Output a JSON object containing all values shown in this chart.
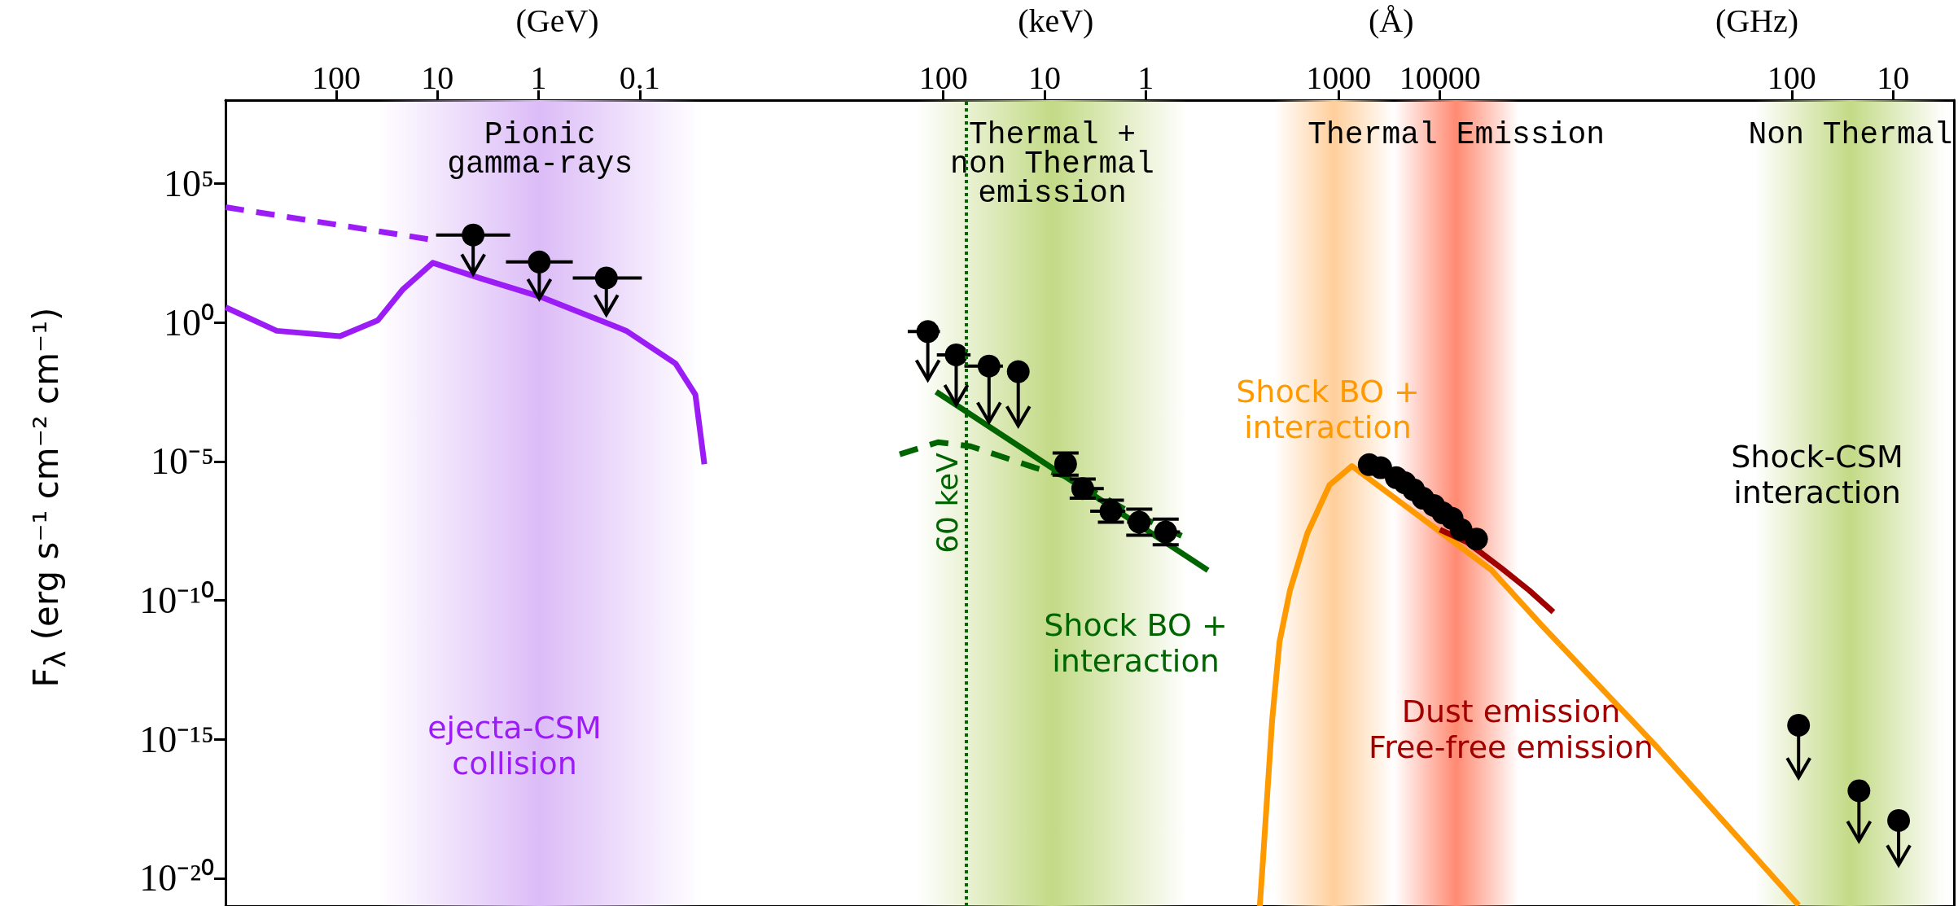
{
  "chart_data": [
    {
      "type": "line",
      "xlabel": "(GeV)",
      "ylabel": "F$_{λ}$ (erg s⁻¹ cm⁻² cm⁻¹)",
      "log": "xy",
      "xlim": [
        1240,
        0.000344
      ],
      "xticks": [
        100,
        10,
        1,
        0.1
      ],
      "ylim": [
        1e-21,
        100000000.0
      ],
      "yticks": [
        {
          "value": 1e-20,
          "label": "10⁻²⁰"
        },
        {
          "value": 1e-15,
          "label": "10⁻¹⁵"
        },
        {
          "value": 1e-10,
          "label": "10⁻¹⁰"
        },
        {
          "value": 1e-05,
          "label": "10⁻⁵"
        },
        {
          "value": 1,
          "label": "10⁰"
        },
        {
          "value": 100000.0,
          "label": "10⁵"
        }
      ],
      "bands": [
        {
          "axis": "x",
          "from": 38.7,
          "to": 0.0243,
          "label": "Pionic\ngamma-rays",
          "color": "#dcbcf7"
        }
      ],
      "series": [
        {
          "color": "#9b1cf5",
          "line_style": "dashed",
          "x": [
            1240,
            12.4
          ],
          "values": [
            14000.0,
            1000.0
          ]
        },
        {
          "name": "ejecta-CSM\ncollision",
          "color": "#9b1cf5",
          "line_style": "solid",
          "x": [
            1240,
            387,
            91.8,
            38.7,
            22.1,
            11.1,
            3.87,
            0.984,
            0.136,
            0.0443,
            0.0282,
            0.023
          ],
          "values": [
            3.5,
            0.5,
            0.32,
            1.2,
            15,
            140,
            40,
            8.7,
            0.5,
            0.033,
            0.0025,
            7.9e-06
          ]
        },
        {
          "type": "scatter",
          "color": "#000000",
          "marker": "circle",
          "x": [
            4.43,
            0.984,
            0.214
          ],
          "values": [
            1400,
            150,
            40
          ],
          "errors": [
            [
              56,
              1400
            ],
            [
              7.1,
              150
            ],
            [
              1.9,
              40
            ]
          ],
          "xerrors": [
            [
              1.91,
              10.3
            ],
            [
              0.459,
              2.1
            ],
            [
              0.0954,
              0.459
            ]
          ]
        }
      ]
    },
    {
      "type": "line",
      "xlabel": "(keV)",
      "log": "xy",
      "tick_labels": "x",
      "xlim": [
        344,
        0.1746
      ],
      "xticks": [
        100,
        10,
        1
      ],
      "ylim": [
        1e-21,
        100000000.0
      ],
      "bands": [
        {
          "axis": "x",
          "from": 182,
          "to": 0.387,
          "label": "Thermal +\nnon Thermal\nemission",
          "color": "#c3da86"
        }
      ],
      "ref_lines": [
        {
          "axis": "x",
          "value": 60,
          "label": "60 keV",
          "color": "#006400",
          "line_style": "dotted"
        }
      ],
      "series": [
        {
          "color": "#006400",
          "line_style": "dashed",
          "x": [
            270,
            113,
            53.9,
            12.4,
            5.9,
            1.53,
            0.443
          ],
          "values": [
            1.8e-05,
            4.9e-05,
            3.5e-05,
            5.9e-06,
            2.8e-06,
            1.7e-07,
            2.1e-08
          ]
        },
        {
          "name": "Shock BO +\ninteraction",
          "color": "#006400",
          "line_style": "solid",
          "x": [
            118,
            0.243
          ],
          "values": [
            0.0032,
            1.2e-09
          ]
        },
        {
          "type": "scatter",
          "color": "#000000",
          "marker": "circle",
          "x": [
            142.5,
            74.7,
            35.4,
            18.2
          ],
          "values": [
            0.47,
            0.068,
            0.027,
            0.017
          ],
          "errors": [
            [
              0.0087,
              0.47
            ],
            [
              0.0011,
              0.068
            ],
            [
              0.00026,
              0.027
            ],
            [
              0.00019,
              0.017
            ]
          ],
          "xerrors": [
            [
              108,
              225
            ],
            [
              53.9,
              116
            ],
            [
              25.8,
              62
            ],
            null
          ]
        },
        {
          "type": "scatter",
          "color": "#000000",
          "marker": "circle",
          "x": [
            6.2,
            4.2,
            2.21,
            1.16,
            0.636
          ],
          "values": [
            8.1e-06,
            1.05e-06,
            1.6e-07,
            6.5e-08,
            2.9e-08
          ],
          "errors": [
            [
              3.2e-06,
              2e-05
            ],
            [
              4.7e-07,
              2.3e-06
            ],
            [
              6.5e-08,
              4e-07
            ],
            [
              2.2e-08,
              1.9e-07
            ],
            [
              1e-08,
              8.4e-08
            ]
          ],
          "xerrors": [
            null,
            [
              2.6,
              4.3
            ],
            [
              1.59,
              3.54
            ],
            [
              0.898,
              1.53
            ],
            [
              0.459,
              0.827
            ]
          ]
        }
      ]
    },
    {
      "type": "line",
      "xlabel": "(Å)",
      "log": "xy",
      "tick_labels": "x",
      "xlim": [
        71,
        153000
      ],
      "xticks": [
        1000,
        10000
      ],
      "ylim": [
        1e-21,
        100000000.0
      ],
      "bands": [
        {
          "axis": "x",
          "from": 230,
          "to": 3500,
          "label": null,
          "color": "#ffcf9c"
        },
        {
          "axis": "x",
          "from": 3500,
          "to": 60000,
          "label": "Thermal Emission",
          "color": "#ff8a72"
        }
      ],
      "series": [
        {
          "name": "Shock BO +\ninteraction",
          "color": "#ff9900",
          "line_style": "solid",
          "x": [
            166,
            178,
            220,
            260,
            330,
            490,
            810,
            1350,
            32000,
            102000,
            153000
          ],
          "values": [
            1e-21,
            4e-20,
            5e-15,
            3.2e-12,
            2.3e-10,
            2.6e-08,
            1.4e-06,
            6.8e-06,
            1.26e-09,
            1.23e-11,
            2.6e-12
          ]
        },
        {
          "name": "Dust emission\nFree-free emission",
          "color": "#a00000",
          "line_style": "solid",
          "x": [
            10000,
            18600,
            41000,
            76000,
            132000
          ],
          "values": [
            3.5e-08,
            1.23e-08,
            1.38e-09,
            2.3e-10,
            3.8e-11
          ]
        },
        {
          "type": "scatter",
          "color": "#000000",
          "marker": "circle",
          "x": [
            2000,
            2600,
            3700,
            4500,
            5500,
            6800,
            8700,
            10700,
            13200,
            16200,
            23000
          ],
          "values": [
            7.6e-06,
            5.9e-06,
            2.6e-06,
            1.7e-06,
            9.5e-07,
            4.7e-07,
            2.6e-07,
            1.4e-07,
            8.9e-08,
            3.5e-08,
            1.6e-08
          ]
        }
      ]
    },
    {
      "type": "line",
      "xlabel": "(GHz)",
      "log": "xy",
      "tick_labels": "x",
      "xlim": [
        19600,
        2.5
      ],
      "xticks": [
        100,
        10
      ],
      "ylim": [
        1e-21,
        100000000.0
      ],
      "bands": [
        {
          "axis": "x",
          "from": 230.6,
          "to": 3.0,
          "label": "Non Thermal",
          "color": "#c3da86"
        }
      ],
      "series": [
        {
          "color": "#ff9900",
          "line_style": "solid",
          "x": [
            19600,
            2324,
            85.7
          ],
          "values": [
            2.6e-12,
            7.2e-16,
            1.07e-21
          ]
        },
        {
          "name": "Shock-CSM\ninteraction",
          "type": "scatter",
          "color": "#000000",
          "marker": "circle",
          "x": [
            85.7,
            21.7,
            8.8
          ],
          "values": [
            3.2e-15,
            1.4e-17,
            1.2e-18
          ],
          "errors": [
            [
              4.2e-17,
              3.2e-15
            ],
            [
              2.2e-19,
              1.4e-17
            ],
            [
              3e-20,
              1.2e-18
            ]
          ]
        }
      ]
    }
  ]
}
